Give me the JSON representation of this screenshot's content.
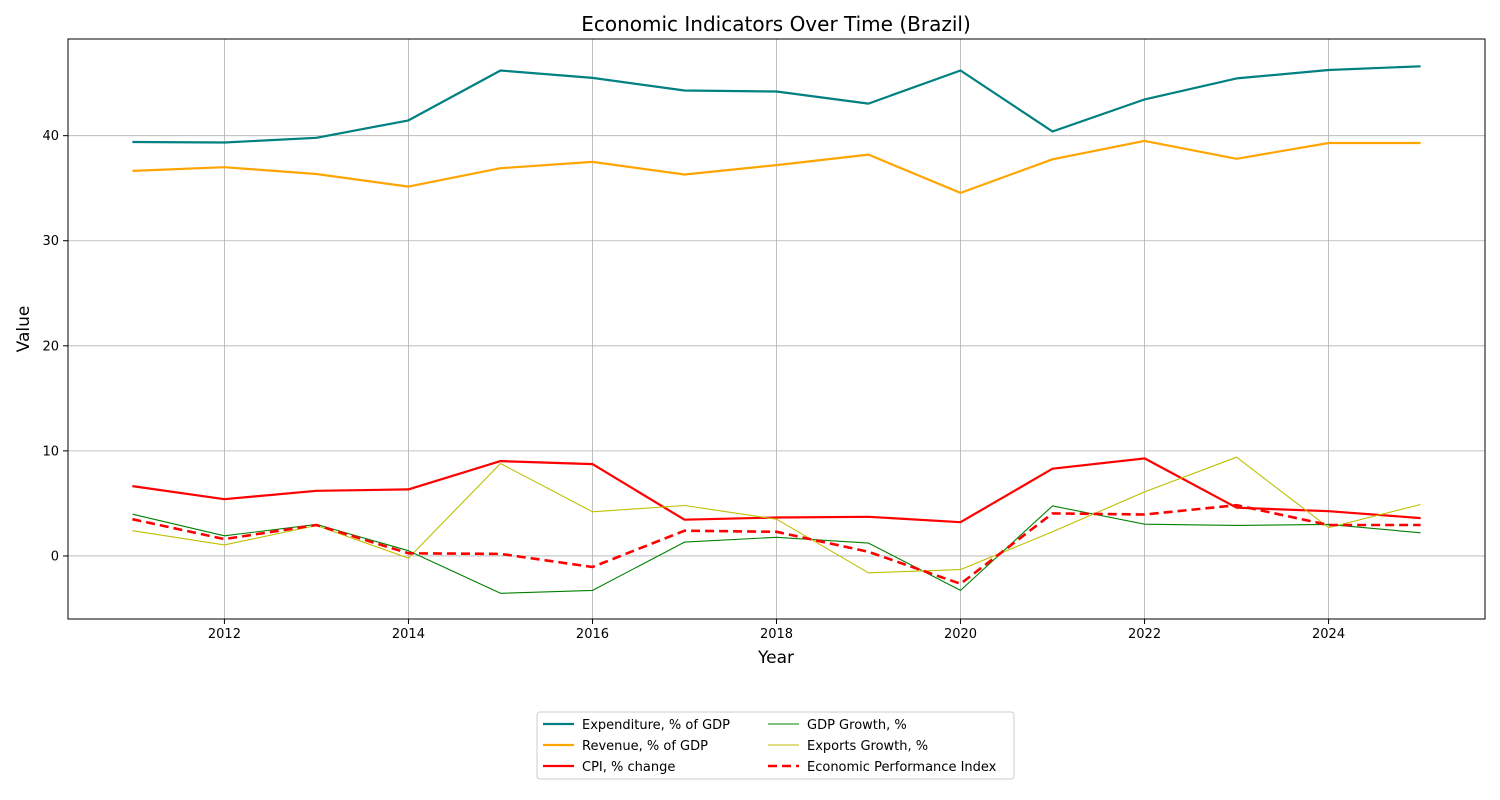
{
  "chart_data": {
    "type": "line",
    "title": "Economic Indicators Over Time (Brazil)",
    "xlabel": "Year",
    "ylabel": "Value",
    "xlim": [
      2010.3,
      2025.7
    ],
    "ylim": [
      -6.0,
      49.2
    ],
    "xticks": [
      2012,
      2014,
      2016,
      2018,
      2020,
      2022,
      2024
    ],
    "yticks": [
      0,
      10,
      20,
      30,
      40
    ],
    "grid": true,
    "legend_position": "bottom-center, outside plot, 2 columns",
    "x": [
      2011,
      2012,
      2013,
      2014,
      2015,
      2016,
      2017,
      2018,
      2019,
      2020,
      2021,
      2022,
      2023,
      2024,
      2025
    ],
    "series": [
      {
        "name": "Expenditure, % of GDP",
        "color": "#008080",
        "style": "solid",
        "width": 2.2,
        "values": [
          39.4,
          39.35,
          39.8,
          41.45,
          46.2,
          45.5,
          44.3,
          44.2,
          43.05,
          46.2,
          40.4,
          43.45,
          45.45,
          46.25,
          46.6
        ]
      },
      {
        "name": "Revenue, % of GDP",
        "color": "#FFA500",
        "style": "solid",
        "width": 2.2,
        "values": [
          36.65,
          37.0,
          36.35,
          35.15,
          36.9,
          37.5,
          36.3,
          37.2,
          38.2,
          34.55,
          37.75,
          39.5,
          37.8,
          39.3,
          39.3
        ]
      },
      {
        "name": "CPI, % change",
        "color": "#FF0000",
        "style": "solid",
        "width": 2.2,
        "values": [
          6.65,
          5.4,
          6.2,
          6.33,
          9.03,
          8.74,
          3.45,
          3.66,
          3.73,
          3.21,
          8.3,
          9.28,
          4.59,
          4.26,
          3.6
        ]
      },
      {
        "name": "GDP Growth, %",
        "color": "#008000",
        "style": "solid",
        "width": 1.1,
        "values": [
          3.97,
          1.92,
          3.0,
          0.5,
          -3.55,
          -3.28,
          1.32,
          1.78,
          1.22,
          -3.28,
          4.76,
          3.02,
          2.91,
          3.0,
          2.2
        ]
      },
      {
        "name": "Exports Growth, %",
        "color": "#BFBF00",
        "style": "solid",
        "width": 1.1,
        "values": [
          2.4,
          1.05,
          2.9,
          -0.2,
          8.8,
          4.2,
          4.8,
          3.5,
          -1.6,
          -1.3,
          2.3,
          6.1,
          9.4,
          2.7,
          4.9
        ]
      },
      {
        "name": "Economic Performance Index",
        "color": "#FF0000",
        "style": "dashed",
        "width": 2.6,
        "values": [
          3.5,
          1.6,
          2.95,
          0.25,
          0.2,
          -1.05,
          2.4,
          2.3,
          0.4,
          -2.65,
          4.05,
          3.95,
          4.83,
          2.95,
          2.95
        ]
      }
    ],
    "legend_columns": [
      [
        "Expenditure, % of GDP",
        "Revenue, % of GDP",
        "CPI, % change"
      ],
      [
        "GDP Growth, %",
        "Exports Growth, %",
        "Economic Performance Index"
      ]
    ]
  }
}
